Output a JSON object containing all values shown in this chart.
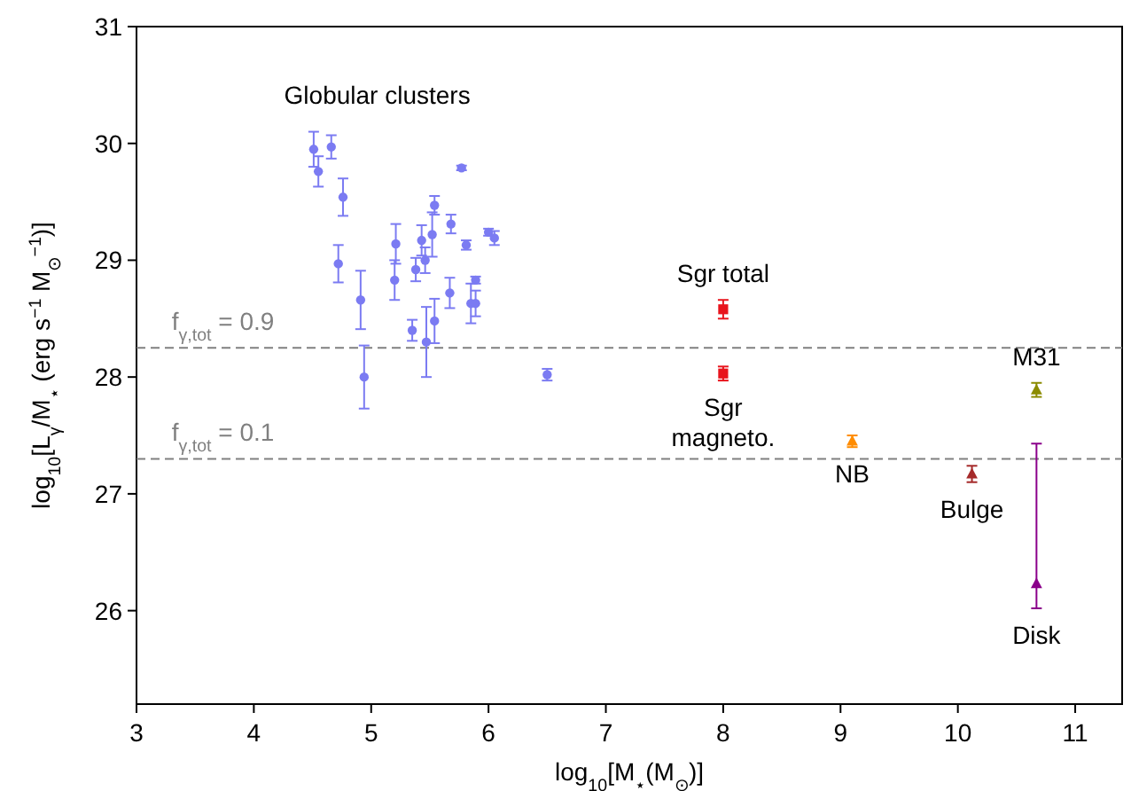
{
  "chart_data": {
    "type": "scatter",
    "xlabel": "log$_{10}$[M$_{⋆}$(M$_{⊙}$)]",
    "ylabel": "log$_{10}$[L$_{γ}$/M$_{⋆}$ (erg s$^{−1}$ M$_{⊙}$$^{−1}$)]",
    "xlim": [
      3,
      11.4
    ],
    "xticks": [
      3,
      4,
      5,
      6,
      7,
      8,
      9,
      10,
      11
    ],
    "ylim": [
      25.2,
      31
    ],
    "yticks": [
      26,
      27,
      28,
      29,
      30,
      31
    ],
    "grid": false,
    "series": [
      {
        "name": "Globular clusters",
        "color": "#7b7bf2",
        "marker": "circle",
        "x": [
          4.51,
          4.55,
          4.66,
          4.76,
          4.72,
          4.91,
          4.94,
          5.21,
          5.2,
          5.35,
          5.38,
          5.43,
          5.46,
          5.47,
          5.52,
          5.54,
          5.54,
          5.68,
          5.67,
          5.77,
          5.81,
          5.85,
          5.89,
          5.89,
          6.0,
          6.05,
          6.5
        ],
        "values": [
          29.95,
          29.76,
          29.97,
          29.54,
          28.97,
          28.66,
          28.0,
          29.14,
          28.83,
          28.4,
          28.92,
          29.17,
          29.0,
          28.3,
          29.22,
          29.47,
          28.48,
          29.31,
          28.72,
          29.79,
          29.13,
          28.63,
          28.63,
          28.83,
          29.24,
          29.19,
          28.02
        ],
        "errors": [
          0.15,
          0.13,
          0.1,
          0.16,
          0.16,
          0.25,
          0.27,
          0.17,
          0.17,
          0.09,
          0.1,
          0.13,
          0.11,
          0.3,
          0.19,
          0.08,
          0.19,
          0.08,
          0.13,
          0.02,
          0.04,
          0.17,
          0.11,
          0.03,
          0.03,
          0.06,
          0.05
        ]
      },
      {
        "name": "Sgr total",
        "color": "#e8141c",
        "marker": "square",
        "x": [
          8.0
        ],
        "values": [
          28.58
        ],
        "errors": [
          0.08
        ]
      },
      {
        "name": "Sgr magneto.",
        "color": "#e8141c",
        "marker": "square",
        "x": [
          8.0
        ],
        "values": [
          28.03
        ],
        "errors": [
          0.06
        ]
      },
      {
        "name": "NB",
        "color": "#ff8c00",
        "marker": "triangle",
        "x": [
          9.1
        ],
        "values": [
          27.45
        ],
        "errors": [
          0.05
        ]
      },
      {
        "name": "Bulge",
        "color": "#a52a2a",
        "marker": "triangle",
        "x": [
          10.12
        ],
        "values": [
          27.17
        ],
        "errors": [
          0.07
        ]
      },
      {
        "name": "M31",
        "color": "#8b8b00",
        "marker": "triangle",
        "x": [
          10.67
        ],
        "values": [
          27.89
        ],
        "errors": [
          0.06
        ]
      },
      {
        "name": "Disk",
        "color": "#8b008b",
        "marker": "triangle",
        "x": [
          10.67
        ],
        "values": [
          26.23
        ],
        "errors": [
          [
            26.02,
            27.43
          ]
        ]
      }
    ],
    "ref_lines": [
      {
        "axis": "y",
        "value": 28.25,
        "line_style": "dashed",
        "color": "#808080"
      },
      {
        "axis": "y",
        "value": 27.3,
        "line_style": "dashed",
        "color": "#808080"
      }
    ],
    "annotations": [
      {
        "text": "f$_{γ,tot}$ = 0.9",
        "x": 3.3,
        "y": 28.25
      },
      {
        "text": "f$_{γ,tot}$ = 0.1",
        "x": 3.3,
        "y": 27.3
      }
    ]
  }
}
